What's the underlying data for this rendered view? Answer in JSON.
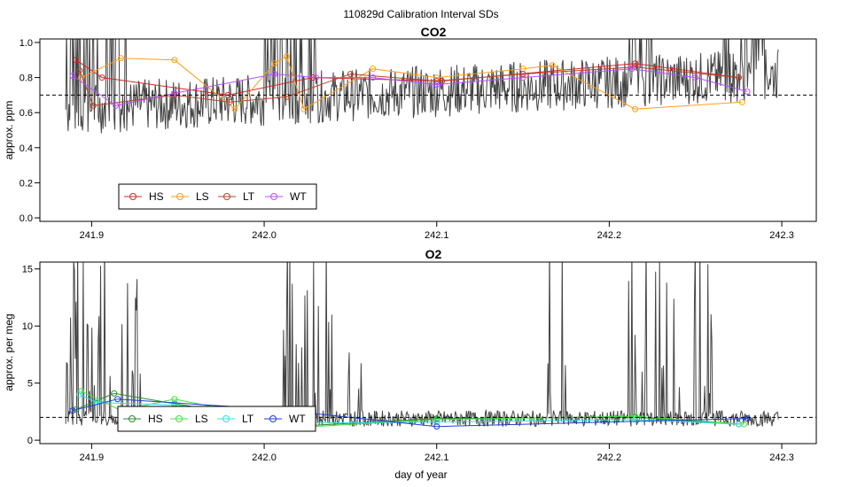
{
  "figure_title": "110829d   Calibration Interval SDs",
  "colors": {
    "HS": "#d62728",
    "LS": "#ff9f1a",
    "LT": "#b5442b",
    "WT": "#b84dff",
    "HS2": "#2e8b2e",
    "LS2": "#44e044",
    "LT2": "#34e0e0",
    "WT2": "#1f3fd6",
    "raw": "#444444"
  },
  "chart_data": [
    {
      "type": "line",
      "title": "CO2",
      "xlabel": "",
      "ylabel": "approx. ppm",
      "xlim": [
        241.87,
        242.32
      ],
      "ylim": [
        -0.02,
        1.02
      ],
      "xticks": [
        241.9,
        242.0,
        242.1,
        242.2,
        242.3
      ],
      "xtick_labels": [
        "241.9",
        "242.0",
        "242.1",
        "242.2",
        "242.3"
      ],
      "yticks": [
        0.0,
        0.2,
        0.4,
        0.6,
        0.8,
        1.0
      ],
      "ytick_labels": [
        "0.0",
        "0.2",
        "0.4",
        "0.6",
        "0.8",
        "1.0"
      ],
      "reference_line": 0.7,
      "legend_position": "bottom-left",
      "series": [
        {
          "name": "HS",
          "x": [
            241.891,
            241.906,
            241.979,
            242.028,
            242.103,
            242.215,
            242.275
          ],
          "y": [
            0.9,
            0.8,
            0.7,
            0.8,
            0.78,
            0.88,
            0.8
          ]
        },
        {
          "name": "LS",
          "x": [
            241.894,
            241.917,
            241.948,
            241.983,
            242.006,
            242.013,
            242.023,
            242.063,
            242.1,
            242.15,
            242.167,
            242.215,
            242.277
          ],
          "y": [
            0.8,
            0.91,
            0.9,
            0.62,
            0.88,
            0.92,
            0.62,
            0.85,
            0.8,
            0.85,
            0.87,
            0.62,
            0.66
          ]
        },
        {
          "name": "LT",
          "x": [
            241.893,
            241.901,
            241.948,
            241.98,
            242.013,
            242.05,
            242.1,
            242.15,
            242.215,
            242.275
          ],
          "y": [
            0.84,
            0.64,
            0.7,
            0.66,
            0.69,
            0.82,
            0.78,
            0.82,
            0.86,
            0.8
          ]
        },
        {
          "name": "WT",
          "x": [
            241.889,
            241.914,
            241.948,
            242.006,
            242.03,
            242.063,
            242.1,
            242.15,
            242.213,
            242.25,
            242.28
          ],
          "y": [
            0.81,
            0.64,
            0.71,
            0.82,
            0.8,
            0.8,
            0.76,
            0.8,
            0.85,
            0.8,
            0.72
          ]
        }
      ]
    },
    {
      "type": "line",
      "title": "O2",
      "xlabel": "day of year",
      "ylabel": "approx. per meg",
      "xlim": [
        241.87,
        242.32
      ],
      "ylim": [
        -0.3,
        15.6
      ],
      "xticks": [
        241.9,
        242.0,
        242.1,
        242.2,
        242.3
      ],
      "xtick_labels": [
        "241.9",
        "242.0",
        "242.1",
        "242.2",
        "242.3"
      ],
      "yticks": [
        0,
        5,
        10,
        15
      ],
      "ytick_labels": [
        "0",
        "5",
        "10",
        "15"
      ],
      "reference_line": 2.0,
      "legend_position": "bottom-left",
      "series": [
        {
          "name": "HS",
          "x": [
            241.891,
            241.913,
            241.948,
            242.028,
            242.1,
            242.215,
            242.275
          ],
          "y": [
            2.7,
            4.1,
            3.2,
            1.3,
            1.9,
            2.0,
            1.4
          ]
        },
        {
          "name": "LS",
          "x": [
            241.894,
            241.917,
            241.948,
            242.028,
            242.1,
            242.215,
            242.278
          ],
          "y": [
            4.3,
            2.6,
            3.6,
            1.2,
            1.8,
            2.1,
            1.4
          ]
        },
        {
          "name": "LT",
          "x": [
            241.893,
            241.903,
            241.948,
            242.028,
            242.1,
            242.215,
            242.275
          ],
          "y": [
            4.0,
            3.3,
            3.1,
            1.5,
            1.6,
            1.8,
            1.4
          ]
        },
        {
          "name": "WT",
          "x": [
            241.889,
            241.915,
            242.006,
            242.1,
            242.28
          ],
          "y": [
            2.6,
            3.6,
            2.7,
            1.2,
            1.9
          ]
        }
      ]
    }
  ]
}
